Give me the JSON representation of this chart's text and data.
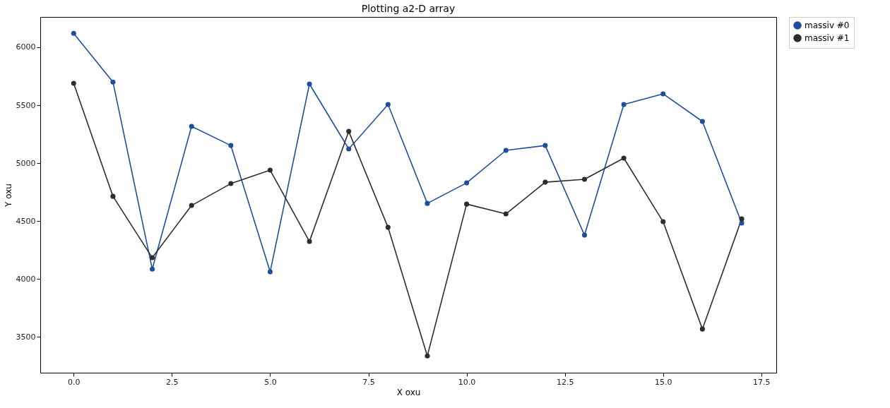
{
  "chart_data": {
    "type": "line",
    "title": "Plotting a2-D array",
    "xlabel": "X oxu",
    "ylabel": "Y oxu",
    "x": [
      0,
      1,
      2,
      3,
      4,
      5,
      6,
      7,
      8,
      9,
      10,
      11,
      12,
      13,
      14,
      15,
      16,
      17
    ],
    "series": [
      {
        "name": "massiv #0",
        "color": "#1f4e9a",
        "values": [
          6120,
          5700,
          4085,
          5317,
          5152,
          4061,
          5683,
          5122,
          5506,
          4652,
          4829,
          5110,
          5152,
          4378,
          5506,
          5598,
          5360,
          4482
        ]
      },
      {
        "name": "massiv #1",
        "color": "#2b2f2b",
        "values": [
          5689,
          4713,
          4183,
          4634,
          4823,
          4939,
          4323,
          5274,
          4445,
          3335,
          4646,
          4561,
          4835,
          4860,
          5043,
          4494,
          3567,
          4518
        ]
      }
    ],
    "xlim": [
      -0.85,
      17.88
    ],
    "ylim": [
      3190,
      6262
    ],
    "xticks": [
      {
        "value": 0,
        "label": "0.0"
      },
      {
        "value": 2.5,
        "label": "2.5"
      },
      {
        "value": 5,
        "label": "5.0"
      },
      {
        "value": 7.5,
        "label": "7.5"
      },
      {
        "value": 10,
        "label": "10.0"
      },
      {
        "value": 12.5,
        "label": "12.5"
      },
      {
        "value": 15,
        "label": "15.0"
      },
      {
        "value": 17.5,
        "label": "17.5"
      }
    ],
    "yticks": [
      3500,
      4000,
      4500,
      5000,
      5500,
      6000
    ],
    "grid": false,
    "legend": "right",
    "marker": "circle",
    "line_style": "solid"
  }
}
